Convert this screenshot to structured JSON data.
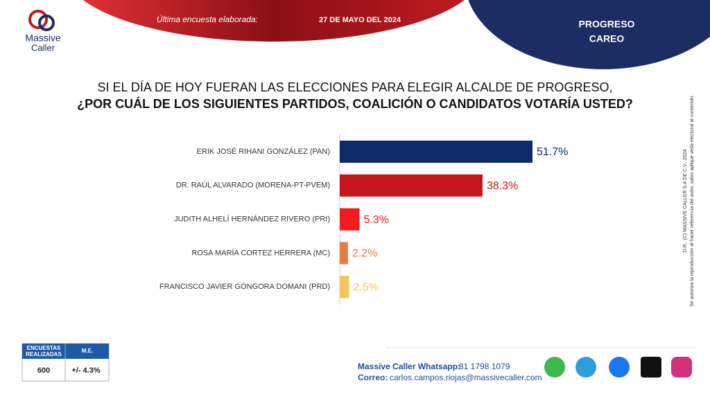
{
  "header": {
    "logo": [
      "Massive",
      "Caller"
    ],
    "survey_label": "Última encuesta elaborada:",
    "survey_date": "27 DE MAYO DEL 2024",
    "region": "PROGRESO",
    "mode": "CAREO"
  },
  "chart_data": {
    "type": "bar",
    "orientation": "horizontal",
    "title": "SI EL DÍA DE HOY FUERAN LAS ELECCIONES PARA ELEGIR ALCALDE DE PROGRESO,",
    "subtitle": "¿POR CUÁL DE LOS SIGUIENTES PARTIDOS, COALICIÓN O CANDIDATOS VOTARÍA USTED?",
    "categories": [
      "ERIK JOSÉ RIHANI GONZÁLEZ (PAN)",
      "DR. RAÚL ALVARADO (MORENA-PT-PVEM)",
      "JUDITH ALHELÍ HERNÁNDEZ RIVERO (PRI)",
      "ROSA MARÍA CORTEZ HERRERA (MC)",
      "FRANCISCO JAVIER GÓNGORA DOMANI (PRD)"
    ],
    "values": [
      51.7,
      38.3,
      5.3,
      2.2,
      2.5
    ],
    "value_labels": [
      "51.7%",
      "38.3%",
      "5.3%",
      "2.2%",
      "2.5%"
    ],
    "colors": [
      "#0f2a6b",
      "#c4161c",
      "#f21c1f",
      "#e67d45",
      "#f4c45a"
    ]
  },
  "sample": {
    "headers": [
      "ENCUESTAS REALIZADAS",
      "M.E."
    ],
    "values": [
      600,
      "+/- 4.3%"
    ]
  },
  "footer": {
    "whatsapp_label": "Massive Caller Whatsapp:",
    "whatsapp": "81 1798 1079",
    "email_label": "Correo:",
    "email": "carlos.campos.riojas@massivecaller.com"
  },
  "copyright": [
    "D.R.: (C) MASSIVE CALLER S.A DE C.V., 2024",
    "Se autoriza la reproducción al hacer referencia del autor, salvo aplique veda electoral al contenido."
  ]
}
